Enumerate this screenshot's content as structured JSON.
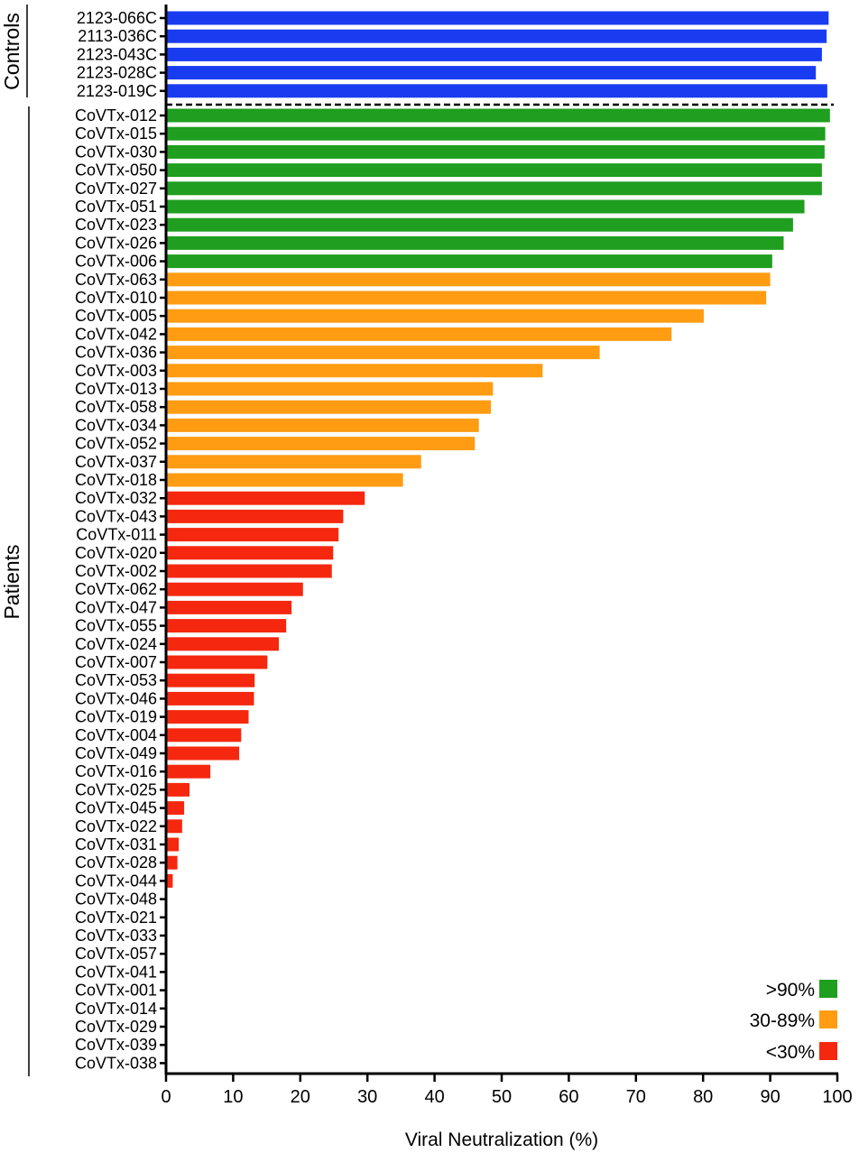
{
  "chart_data": {
    "type": "bar",
    "orientation": "horizontal",
    "xlabel": "Viral Neutralization (%)",
    "xlim": [
      0,
      100
    ],
    "xticks": [
      0,
      10,
      20,
      30,
      40,
      50,
      60,
      70,
      80,
      90,
      100
    ],
    "grid": false,
    "legend_placement": "bottom-right",
    "legend": [
      {
        "label": ">90%",
        "color": "#1f9e1f"
      },
      {
        "label": "30-89%",
        "color": "#ff9c12"
      },
      {
        "label": "<30%",
        "color": "#f5280f"
      }
    ],
    "groups": [
      {
        "name": "Controls",
        "color": "#1a3cf0",
        "categories": [
          "2123-066C",
          "2113-036C",
          "2123-043C",
          "2123-028C",
          "2123-019C"
        ],
        "values": [
          98.7,
          98.4,
          97.7,
          96.8,
          98.5
        ]
      },
      {
        "name": "Patients",
        "categories": [
          "CoVTx-012",
          "CoVTx-015",
          "CoVTx-030",
          "CoVTx-050",
          "CoVTx-027",
          "CoVTx-051",
          "CoVTx-023",
          "CoVTx-026",
          "CoVTx-006",
          "CoVTx-063",
          "CoVTx-010",
          "CoVTx-005",
          "CoVTx-042",
          "CoVTx-036",
          "CoVTx-003",
          "CoVTx-013",
          "CoVTx-058",
          "CoVTx-034",
          "CoVTx-052",
          "CoVTx-037",
          "CoVTx-018",
          "CoVTx-032",
          "CoVTx-043",
          "CoVTx-011",
          "CoVTx-020",
          "CoVTx-002",
          "CoVTx-062",
          "CoVTx-047",
          "CoVTx-055",
          "CoVTx-024",
          "CoVTx-007",
          "CoVTx-053",
          "CoVTx-046",
          "CoVTx-019",
          "CoVTx-004",
          "CoVTx-049",
          "CoVTx-016",
          "CoVTx-025",
          "CoVTx-045",
          "CoVTx-022",
          "CoVTx-031",
          "CoVTx-028",
          "CoVTx-044",
          "CoVTx-048",
          "CoVTx-021",
          "CoVTx-033",
          "CoVTx-057",
          "CoVTx-041",
          "CoVTx-001",
          "CoVTx-014",
          "CoVTx-029",
          "CoVTx-039",
          "CoVTx-038"
        ],
        "values": [
          98.9,
          98.2,
          98.1,
          97.7,
          97.7,
          95.1,
          93.4,
          92.0,
          90.3,
          90.0,
          89.4,
          80.1,
          75.3,
          64.6,
          56.1,
          48.7,
          48.4,
          46.6,
          46.0,
          38.0,
          35.3,
          29.6,
          26.4,
          25.7,
          24.9,
          24.7,
          20.4,
          18.7,
          17.9,
          16.8,
          15.1,
          13.2,
          13.1,
          12.3,
          11.2,
          10.9,
          6.6,
          3.5,
          2.7,
          2.4,
          1.9,
          1.7,
          1.0,
          0,
          0,
          0,
          0,
          0,
          0,
          0,
          0,
          0,
          0
        ]
      }
    ]
  }
}
